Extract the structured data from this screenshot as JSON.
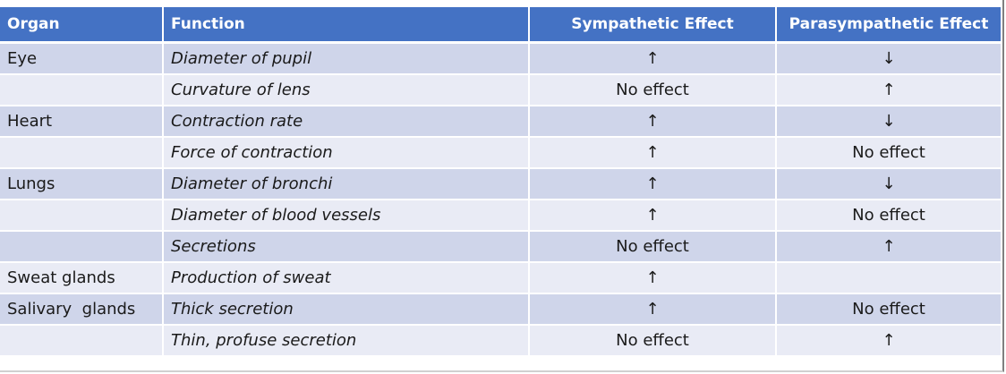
{
  "table": {
    "headers": [
      "Organ",
      "Function",
      "Sympathetic Effect",
      "Parasympathetic Effect"
    ],
    "rows": [
      {
        "organ": "Eye",
        "function": "Diameter of pupil",
        "sympathetic": "↑",
        "parasympathetic": "↓"
      },
      {
        "organ": "",
        "function": "Curvature of lens",
        "sympathetic": "No effect",
        "parasympathetic": "↑"
      },
      {
        "organ": "Heart",
        "function": "Contraction rate",
        "sympathetic": "↑",
        "parasympathetic": "↓"
      },
      {
        "organ": "",
        "function": "Force of contraction",
        "sympathetic": "↑",
        "parasympathetic": "No effect"
      },
      {
        "organ": "Lungs",
        "function": "Diameter of bronchi",
        "sympathetic": "↑",
        "parasympathetic": "↓"
      },
      {
        "organ": "",
        "function": "Diameter of blood vessels",
        "sympathetic": "↑",
        "parasympathetic": "No effect"
      },
      {
        "organ": "",
        "function": "Secretions",
        "sympathetic": "No effect",
        "parasympathetic": "↑"
      },
      {
        "organ": "Sweat glands",
        "function": "Production of sweat",
        "sympathetic": "↑",
        "parasympathetic": ""
      },
      {
        "organ": "Salivary  glands",
        "function": "Thick secretion",
        "sympathetic": "↑",
        "parasympathetic": "No effect"
      },
      {
        "organ": "",
        "function": "Thin, profuse secretion",
        "sympathetic": "No effect",
        "parasympathetic": "↑"
      }
    ]
  },
  "colors": {
    "header": "#4472c4",
    "row_dark": "#cfd5ea",
    "row_light": "#e9ebf5"
  }
}
